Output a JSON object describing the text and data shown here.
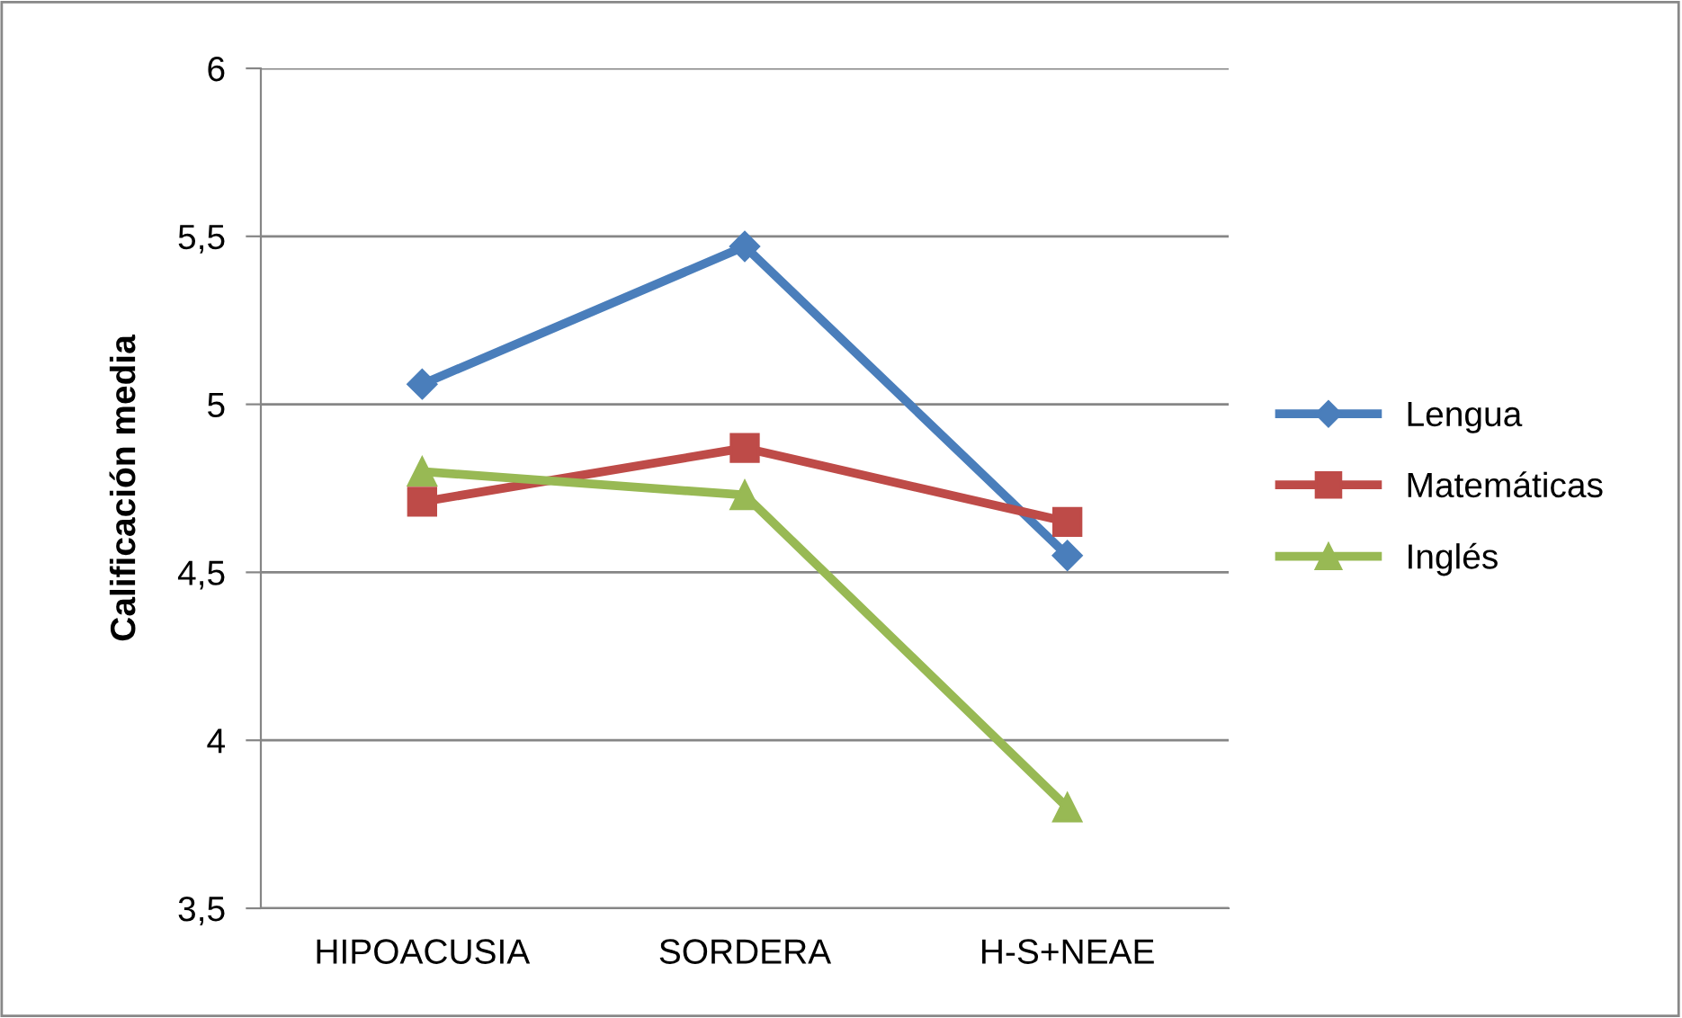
{
  "chart_data": {
    "type": "line",
    "ylabel": "Calificación media",
    "categories": [
      "HIPOACUSIA",
      "SORDERA",
      "H-S+NEAE"
    ],
    "series": [
      {
        "name": "Lengua",
        "color": "#4a7ebb",
        "marker": "diamond",
        "values": [
          5.06,
          5.47,
          4.55
        ]
      },
      {
        "name": "Matemáticas",
        "color": "#be4b48",
        "marker": "square",
        "values": [
          4.71,
          4.87,
          4.65
        ]
      },
      {
        "name": "Inglés",
        "color": "#98b954",
        "marker": "triangle",
        "values": [
          4.8,
          4.73,
          3.8
        ]
      }
    ],
    "ylim": [
      3.5,
      6
    ],
    "yticks": [
      {
        "value": 3.5,
        "label": "3,5"
      },
      4,
      {
        "value": 4.5,
        "label": "4,5"
      },
      5,
      {
        "value": 5.5,
        "label": "5,5"
      },
      6
    ],
    "grid": "y",
    "legend": "right",
    "line_style": "solid"
  }
}
